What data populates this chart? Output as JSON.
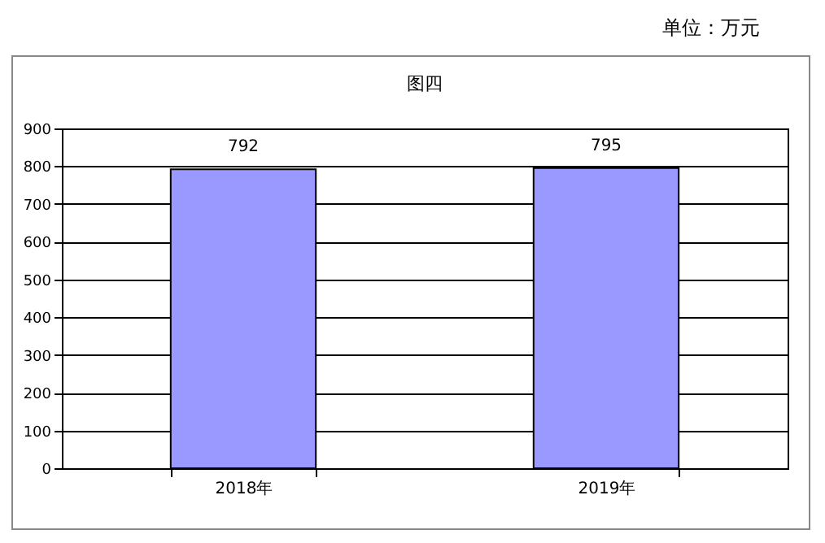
{
  "chart_data": {
    "type": "bar",
    "title": "图四",
    "categories": [
      "2018年",
      "2019年"
    ],
    "values": [
      792,
      795
    ],
    "color": "#9999ff",
    "ylim": [
      0,
      900
    ],
    "yticks": [
      0,
      100,
      200,
      300,
      400,
      500,
      600,
      700,
      800,
      900
    ],
    "grid": "y",
    "data_labels": true,
    "annotations": [
      "单位：万元"
    ]
  }
}
